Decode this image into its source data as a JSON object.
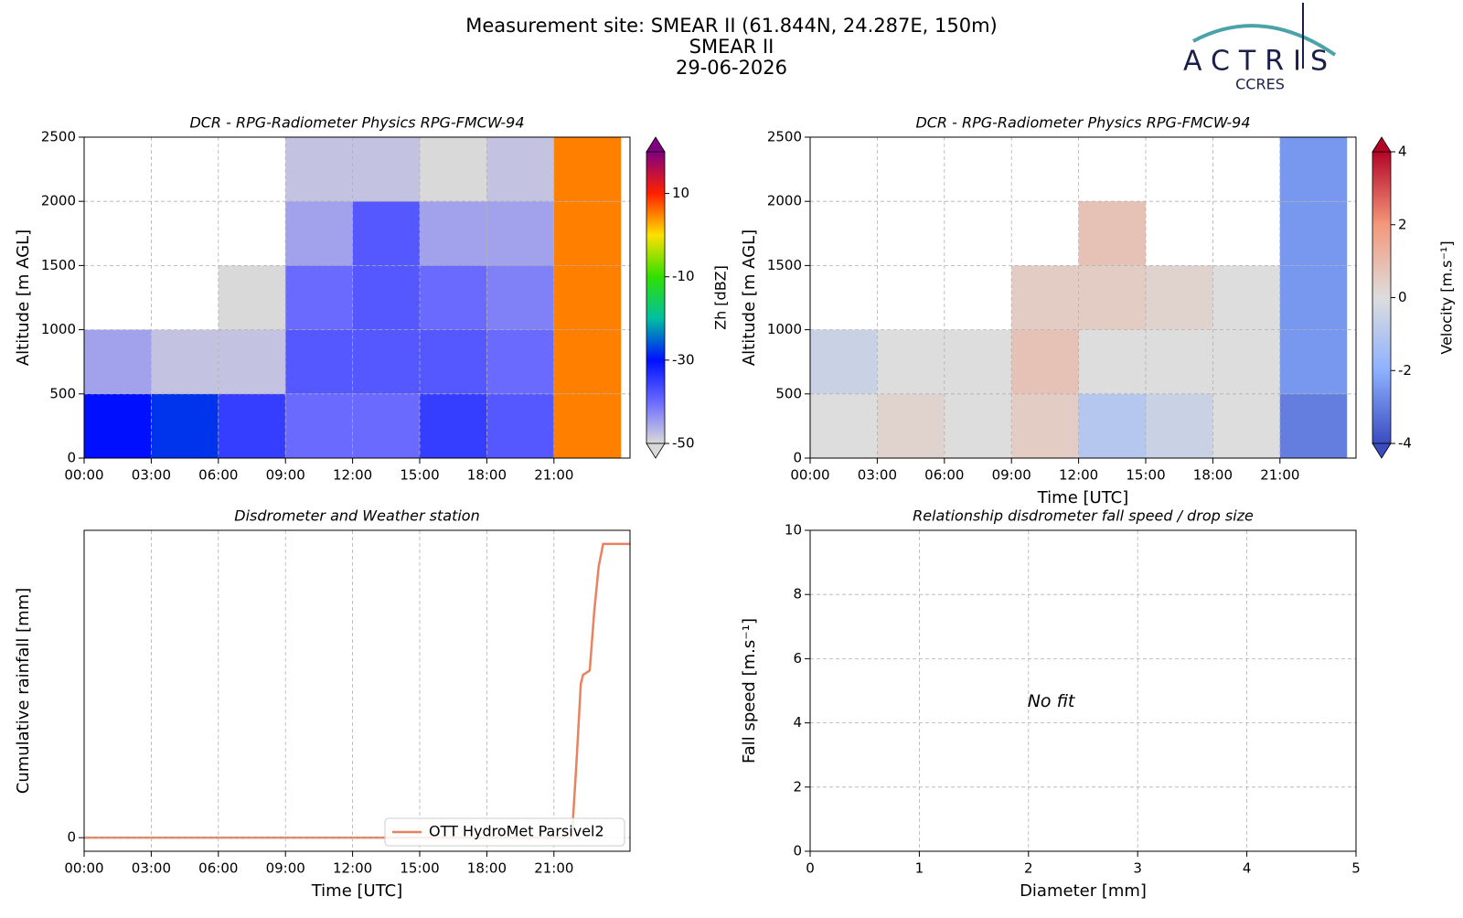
{
  "header": {
    "title": "Measurement site: SMEAR II (61.844N, 24.287E, 150m)",
    "site": "SMEAR II",
    "date": "29-06-2026"
  },
  "logo": {
    "name": "ACTRIS",
    "subtitle": "CCRES"
  },
  "chart_data": [
    {
      "type": "heatmap",
      "title": "DCR - RPG-Radiometer Physics RPG-FMCW-94",
      "ylabel": "Altitude [m AGL]",
      "xlim": [
        0,
        24.4
      ],
      "ylim": [
        0,
        2500
      ],
      "xticks": [
        {
          "value": 0,
          "label": "00:00"
        },
        {
          "value": 3,
          "label": "03:00"
        },
        {
          "value": 6,
          "label": "06:00"
        },
        {
          "value": 9,
          "label": "09:00"
        },
        {
          "value": 12,
          "label": "12:00"
        },
        {
          "value": 15,
          "label": "15:00"
        },
        {
          "value": 18,
          "label": "18:00"
        },
        {
          "value": 21,
          "label": "21:00"
        }
      ],
      "yticks": [
        0,
        500,
        1000,
        1500,
        2000,
        2500
      ],
      "grid": true,
      "xbins": [
        0,
        3,
        6,
        9,
        12,
        15,
        18,
        21,
        24
      ],
      "ybins": [
        0,
        500,
        1000,
        1500,
        2000,
        2500
      ],
      "z": [
        [
          -30,
          -28,
          -35,
          -40,
          -40,
          -35,
          -38,
          5
        ],
        [
          -45,
          -48,
          -48,
          -38,
          -38,
          -38,
          -40,
          5
        ],
        [
          null,
          null,
          -50,
          -40,
          -38,
          -40,
          -42,
          5
        ],
        [
          null,
          null,
          null,
          -45,
          -38,
          -45,
          -45,
          5
        ],
        [
          null,
          null,
          null,
          -48,
          -48,
          -50,
          -48,
          5
        ]
      ],
      "colorbar_label": "Zh [dBZ]",
      "clim": [
        -50,
        20
      ],
      "cticks": [
        -50,
        -30,
        -10,
        10
      ],
      "colormap": [
        "#d9d9d9",
        "#6a6aff",
        "#0010ff",
        "#00c0a0",
        "#30e000",
        "#ffe000",
        "#ff2000",
        "#800080"
      ]
    },
    {
      "type": "heatmap",
      "title": "DCR - RPG-Radiometer Physics RPG-FMCW-94",
      "ylabel": "Altitude [m AGL]",
      "xlabel": "Time [UTC]",
      "xlim": [
        0,
        24.4
      ],
      "ylim": [
        0,
        2500
      ],
      "xticks": [
        {
          "value": 0,
          "label": "00:00"
        },
        {
          "value": 3,
          "label": "03:00"
        },
        {
          "value": 6,
          "label": "06:00"
        },
        {
          "value": 9,
          "label": "09:00"
        },
        {
          "value": 12,
          "label": "12:00"
        },
        {
          "value": 15,
          "label": "15:00"
        },
        {
          "value": 18,
          "label": "18:00"
        },
        {
          "value": 21,
          "label": "21:00"
        }
      ],
      "yticks": [
        0,
        500,
        1000,
        1500,
        2000,
        2500
      ],
      "grid": true,
      "xbins": [
        0,
        3,
        6,
        9,
        12,
        15,
        18,
        21,
        24
      ],
      "ybins": [
        0,
        500,
        1000,
        1500,
        2000,
        2500
      ],
      "z": [
        [
          0,
          0.3,
          0,
          0.5,
          -1,
          -0.5,
          0,
          -3
        ],
        [
          -0.5,
          0,
          0,
          0.8,
          0,
          0,
          0,
          -2.5
        ],
        [
          null,
          null,
          null,
          0.5,
          0.5,
          0.3,
          0,
          -2.5
        ],
        [
          null,
          null,
          null,
          null,
          0.8,
          null,
          null,
          -2.5
        ],
        [
          null,
          null,
          null,
          null,
          null,
          null,
          null,
          -2.5
        ]
      ],
      "colorbar_label": "Velocity [m.s⁻¹]",
      "clim": [
        -4,
        4
      ],
      "cticks": [
        -4,
        -2,
        0,
        2,
        4
      ],
      "colormap": [
        "#3a4cc0",
        "#8db0fe",
        "#dddddd",
        "#f4987a",
        "#b40426"
      ]
    },
    {
      "type": "line",
      "title": "Disdrometer and Weather station",
      "ylabel": "Cumulative rainfall [mm]",
      "xlabel": "Time [UTC]",
      "xlim": [
        0,
        24.4
      ],
      "ylim": [
        -0.3,
        6.8
      ],
      "xticks": [
        {
          "value": 0,
          "label": "00:00"
        },
        {
          "value": 3,
          "label": "03:00"
        },
        {
          "value": 6,
          "label": "06:00"
        },
        {
          "value": 9,
          "label": "09:00"
        },
        {
          "value": 12,
          "label": "12:00"
        },
        {
          "value": 15,
          "label": "15:00"
        },
        {
          "value": 18,
          "label": "18:00"
        },
        {
          "value": 21,
          "label": "21:00"
        }
      ],
      "yticks": [
        0
      ],
      "grid": true,
      "legend": "lower right",
      "x": [
        0,
        21.8,
        22.0,
        22.2,
        22.3,
        22.6,
        22.8,
        23.0,
        23.2,
        24.4
      ],
      "series": [
        {
          "name": "OTT HydroMet Parsivel2",
          "color": "#e8825f",
          "values": [
            0,
            0,
            1.6,
            3.4,
            3.6,
            3.7,
            5.0,
            6.0,
            6.5,
            6.5
          ]
        }
      ]
    },
    {
      "type": "scatter",
      "title": "Relationship disdrometer fall speed / drop size",
      "ylabel": "Fall speed [m.s⁻¹]",
      "xlabel": "Diameter [mm]",
      "xlim": [
        0,
        5
      ],
      "ylim": [
        0,
        10
      ],
      "xticks": [
        0,
        1,
        2,
        3,
        4,
        5
      ],
      "yticks": [
        0,
        2,
        4,
        6,
        8,
        10
      ],
      "grid": true,
      "annotation": "No fit"
    }
  ]
}
